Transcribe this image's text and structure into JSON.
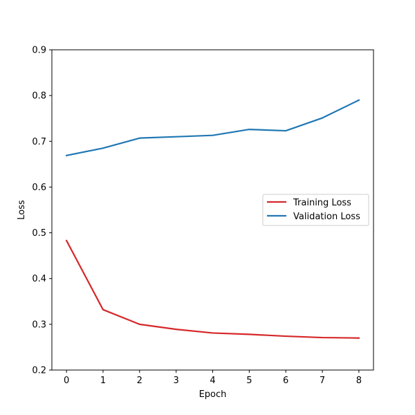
{
  "chart_data": {
    "type": "line",
    "title": "",
    "xlabel": "Epoch",
    "ylabel": "Loss",
    "x": [
      0,
      1,
      2,
      3,
      4,
      5,
      6,
      7,
      8
    ],
    "xticks": [
      "0",
      "1",
      "2",
      "3",
      "4",
      "5",
      "6",
      "7",
      "8"
    ],
    "yticks": [
      "0.2",
      "0.3",
      "0.4",
      "0.5",
      "0.6",
      "0.7",
      "0.8",
      "0.9"
    ],
    "xlim": [
      -0.4,
      8.4
    ],
    "ylim": [
      0.2,
      0.9
    ],
    "grid": false,
    "legend_position": "center-right",
    "series": [
      {
        "name": "Training Loss",
        "color": "#d62728",
        "values": [
          0.483,
          0.332,
          0.3,
          0.289,
          0.281,
          0.278,
          0.274,
          0.271,
          0.27
        ]
      },
      {
        "name": "Validation Loss",
        "color": "#1f77b4",
        "values": [
          0.669,
          0.685,
          0.707,
          0.71,
          0.713,
          0.726,
          0.723,
          0.751,
          0.79
        ]
      }
    ]
  }
}
